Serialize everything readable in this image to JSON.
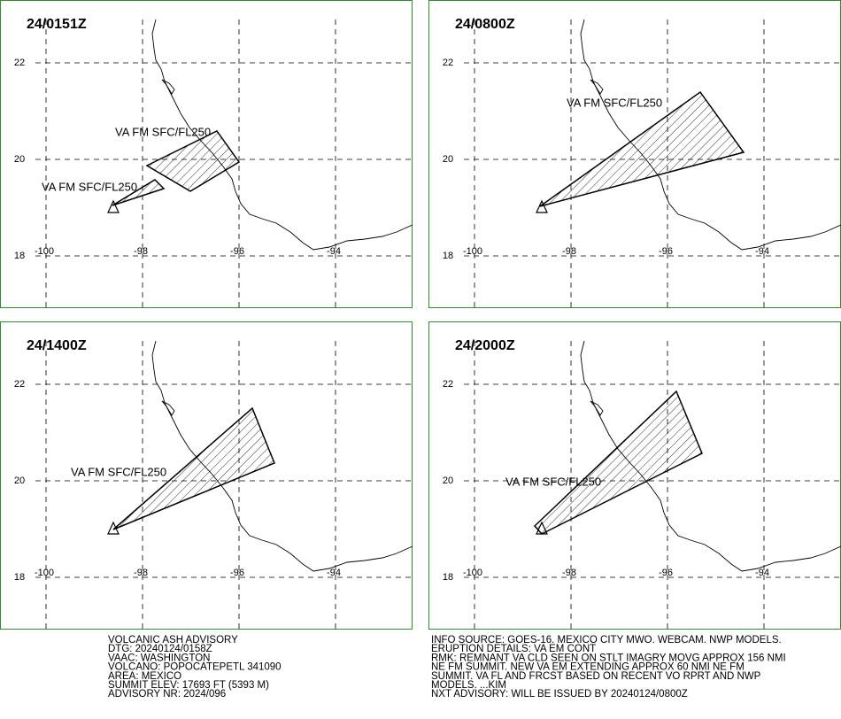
{
  "panels": [
    {
      "time": "24/0151Z",
      "labels": [
        "VA FM SFC/FL250",
        "VA FM SFC/FL250"
      ]
    },
    {
      "time": "24/0800Z",
      "labels": [
        "VA FM SFC/FL250"
      ]
    },
    {
      "time": "24/1400Z",
      "labels": [
        "VA FM SFC/FL250"
      ]
    },
    {
      "time": "24/2000Z",
      "labels": [
        "VA FM SFC/FL250"
      ]
    }
  ],
  "lat_labels": [
    22,
    20,
    18
  ],
  "lon_labels": [
    -100,
    -98,
    -96,
    -94
  ],
  "advisory_left": [
    "VOLCANIC ASH ADVISORY",
    "DTG: 20240124/0158Z",
    "VAAC: WASHINGTON",
    "VOLCANO: POPOCATEPETL 341090",
    "AREA: MEXICO",
    "SUMMIT ELEV: 17693 FT (5393 M)",
    "ADVISORY NR: 2024/096"
  ],
  "advisory_right": [
    "INFO SOURCE: GOES-16. MEXICO CITY MWO. WEBCAM. NWP MODELS.",
    "ERUPTION DETAILS: VA EM CONT",
    "RMK: REMNANT VA CLD SEEN ON STLT IMAGRY MOVG APPROX 156 NMI",
    "NE FM SUMMIT. NEW VA EM EXTENDING APPROX 60 NMI NE FM",
    "SUMMIT. VA FL AND FRCST BASED ON RECENT VO RPRT AND NWP",
    "MODELS. ...KIM",
    "NXT ADVISORY: WILL BE ISSUED BY 20240124/0800Z"
  ]
}
